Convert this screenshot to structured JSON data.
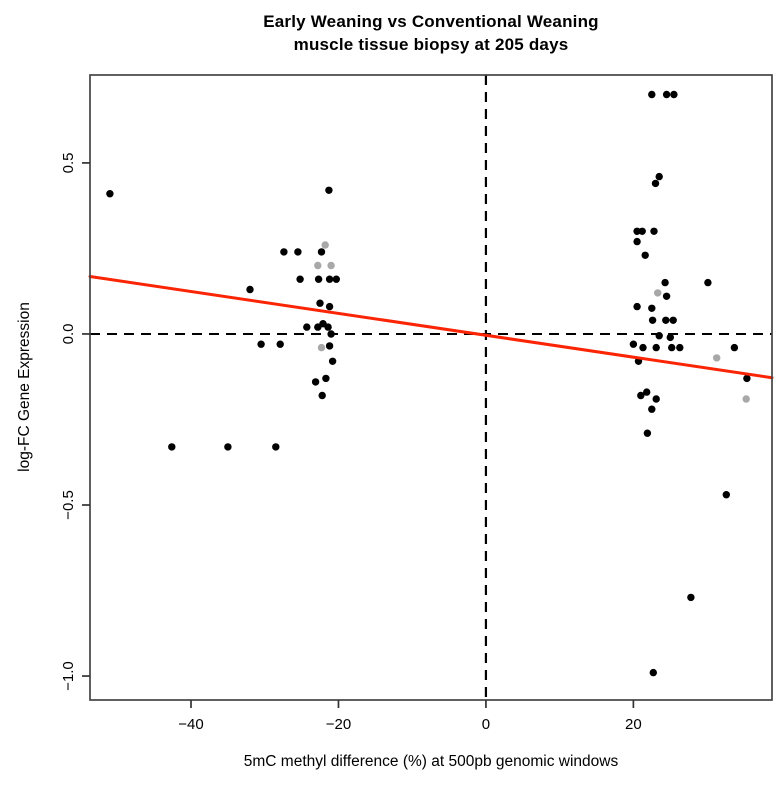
{
  "title": {
    "line1": "Early Weaning vs Conventional Weaning",
    "line2": "muscle tissue biopsy at 205 days"
  },
  "chart_data": {
    "type": "scatter",
    "title": "Early Weaning vs Conventional Weaning",
    "subtitle": "muscle tissue biopsy at 205 days",
    "xlabel": "5mC methyl difference (%) at 500pb genomic windows",
    "ylabel": "log-FC Gene Expression",
    "xlim": [
      -53.7,
      38.8
    ],
    "ylim": [
      -1.07,
      0.757
    ],
    "grid": false,
    "legend": "none",
    "xticks": [
      {
        "value": -40,
        "label": "−40"
      },
      {
        "value": -20,
        "label": "−20"
      },
      {
        "value": 0,
        "label": "0"
      },
      {
        "value": 20,
        "label": "20"
      }
    ],
    "yticks": [
      {
        "value": 0.5,
        "label": "0.5"
      },
      {
        "value": 0.0,
        "label": "0.0"
      },
      {
        "value": -0.5,
        "label": "−0.5"
      },
      {
        "value": -1.0,
        "label": "−1.0"
      }
    ],
    "reference_lines": {
      "vertical_x": 0,
      "horizontal_y": 0,
      "style": "dashed",
      "color": "#000000"
    },
    "regression_line": {
      "x1": -53.7,
      "y1": 0.168,
      "x2": 38.8,
      "y2": -0.128,
      "slope": -0.0032,
      "intercept": -0.004,
      "color": "#fb2505"
    },
    "point_colors": {
      "black": "#000000",
      "gray": "#a8a8a8"
    },
    "series": [
      {
        "name": "data-point-black",
        "color": "#000000",
        "points": [
          [
            -51.0,
            0.41
          ],
          [
            -21.3,
            0.42
          ],
          [
            -27.4,
            0.24
          ],
          [
            -25.5,
            0.24
          ],
          [
            -22.3,
            0.24
          ],
          [
            -25.2,
            0.16
          ],
          [
            -22.7,
            0.16
          ],
          [
            -21.2,
            0.16
          ],
          [
            -20.3,
            0.16
          ],
          [
            -32.0,
            0.13
          ],
          [
            -22.5,
            0.09
          ],
          [
            -21.2,
            0.08
          ],
          [
            -24.3,
            0.02
          ],
          [
            -22.8,
            0.02
          ],
          [
            -22.1,
            0.03
          ],
          [
            -21.4,
            0.02
          ],
          [
            -21.0,
            0.0
          ],
          [
            -30.5,
            -0.03
          ],
          [
            -27.9,
            -0.03
          ],
          [
            -21.2,
            -0.035
          ],
          [
            -20.8,
            -0.08
          ],
          [
            -23.1,
            -0.14
          ],
          [
            -21.7,
            -0.13
          ],
          [
            -22.2,
            -0.18
          ],
          [
            -42.6,
            -0.33
          ],
          [
            -35.0,
            -0.33
          ],
          [
            -28.5,
            -0.33
          ],
          [
            22.5,
            0.7
          ],
          [
            24.5,
            0.7
          ],
          [
            25.5,
            0.7
          ],
          [
            23.5,
            0.46
          ],
          [
            23.0,
            0.44
          ],
          [
            20.5,
            0.3
          ],
          [
            21.2,
            0.3
          ],
          [
            22.8,
            0.3
          ],
          [
            20.5,
            0.27
          ],
          [
            21.6,
            0.23
          ],
          [
            24.3,
            0.15
          ],
          [
            30.1,
            0.15
          ],
          [
            24.5,
            0.11
          ],
          [
            20.5,
            0.08
          ],
          [
            22.5,
            0.075
          ],
          [
            22.6,
            0.04
          ],
          [
            24.4,
            0.04
          ],
          [
            25.4,
            0.04
          ],
          [
            23.5,
            -0.005
          ],
          [
            25.0,
            -0.01
          ],
          [
            20.0,
            -0.03
          ],
          [
            21.3,
            -0.04
          ],
          [
            23.1,
            -0.04
          ],
          [
            25.2,
            -0.04
          ],
          [
            26.3,
            -0.04
          ],
          [
            33.7,
            -0.04
          ],
          [
            20.7,
            -0.08
          ],
          [
            35.4,
            -0.13
          ],
          [
            21.0,
            -0.18
          ],
          [
            21.8,
            -0.17
          ],
          [
            23.1,
            -0.19
          ],
          [
            22.5,
            -0.22
          ],
          [
            21.9,
            -0.29
          ],
          [
            32.6,
            -0.47
          ],
          [
            27.8,
            -0.77
          ],
          [
            22.7,
            -0.99
          ]
        ]
      },
      {
        "name": "data-point-gray",
        "color": "#a8a8a8",
        "points": [
          [
            -21.8,
            0.26
          ],
          [
            -22.8,
            0.2
          ],
          [
            -21.0,
            0.2
          ],
          [
            -22.3,
            -0.04
          ],
          [
            23.3,
            0.12
          ],
          [
            31.3,
            -0.07
          ],
          [
            35.3,
            -0.19
          ]
        ]
      }
    ]
  }
}
